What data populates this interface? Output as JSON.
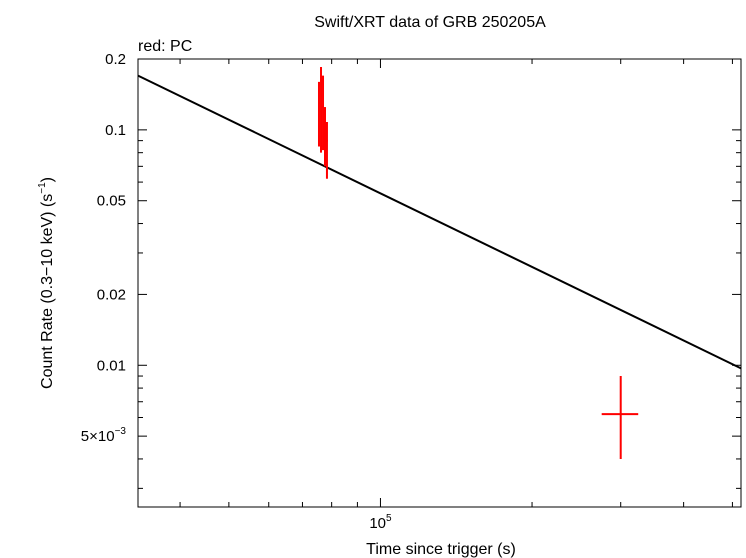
{
  "chart_data": {
    "type": "scatter",
    "title": "Swift/XRT data of GRB 250205A",
    "subtitle": "red: PC",
    "xlabel": "Time since trigger (s)",
    "ylabel": "Count Rate (0.3−10 keV) (s",
    "ylabel_superscript": "−1",
    "ylabel_suffix": ")",
    "x_scale": "log",
    "y_scale": "log",
    "xlim": [
      33000,
      520000
    ],
    "ylim": [
      0.0025,
      0.2
    ],
    "x_ticks": [
      {
        "value": 100000,
        "base": "10",
        "exp": "5"
      }
    ],
    "y_ticks": [
      {
        "value": 0.2,
        "label": "0.2"
      },
      {
        "value": 0.1,
        "label": "0.1"
      },
      {
        "value": 0.05,
        "label": "0.05"
      },
      {
        "value": 0.02,
        "label": "0.02"
      },
      {
        "value": 0.01,
        "label": "0.01"
      },
      {
        "value": 0.005,
        "label": "5×10",
        "exp": "−3"
      }
    ],
    "series": [
      {
        "name": "PC",
        "color": "#ff0000",
        "points": [
          {
            "x": 75500,
            "xerr": [
              75200,
              75800
            ],
            "y": 0.13,
            "yerr": [
              0.085,
              0.16
            ]
          },
          {
            "x": 76200,
            "xerr": [
              75900,
              76500
            ],
            "y": 0.12,
            "yerr": [
              0.08,
              0.185
            ]
          },
          {
            "x": 76900,
            "xerr": [
              76600,
              77200
            ],
            "y": 0.125,
            "yerr": [
              0.082,
              0.17
            ]
          },
          {
            "x": 77600,
            "xerr": [
              77300,
              77900
            ],
            "y": 0.095,
            "yerr": [
              0.07,
              0.125
            ]
          },
          {
            "x": 78300,
            "xerr": [
              78000,
              78600
            ],
            "y": 0.09,
            "yerr": [
              0.062,
              0.108
            ]
          },
          {
            "x": 300000,
            "xerr": [
              275000,
              325000
            ],
            "y": 0.0062,
            "yerr": [
              0.004,
              0.009
            ]
          }
        ]
      }
    ],
    "model": {
      "name": "power-law fit",
      "color": "#000000",
      "x": [
        33000,
        520000
      ],
      "y": [
        0.17,
        0.0097
      ]
    }
  }
}
